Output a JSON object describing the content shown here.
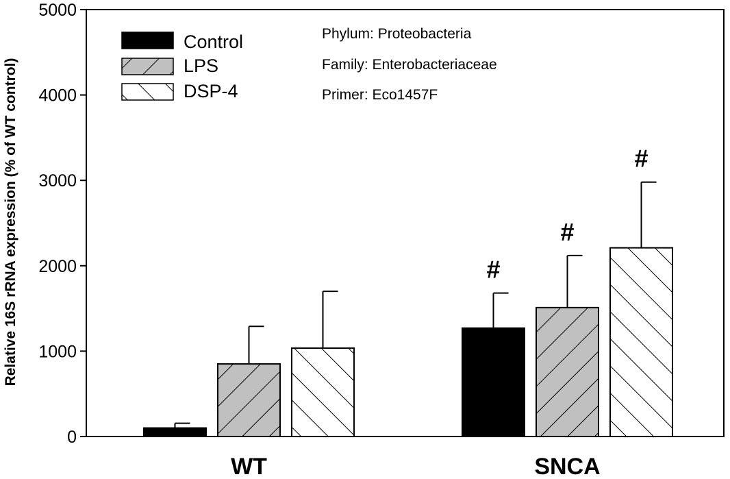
{
  "chart_data": {
    "type": "bar",
    "categories": [
      "WT",
      "SNCA"
    ],
    "series": [
      {
        "name": "Control",
        "values": [
          100,
          1270
        ],
        "errors": [
          55,
          410
        ],
        "fill": "solid-black"
      },
      {
        "name": "LPS",
        "values": [
          850,
          1510
        ],
        "errors": [
          440,
          610
        ],
        "fill": "hatch-forward-gray"
      },
      {
        "name": "DSP-4",
        "values": [
          1035,
          2210
        ],
        "errors": [
          665,
          770
        ],
        "fill": "hatch-backward-white"
      }
    ],
    "significance": [
      {
        "category": "SNCA",
        "series": "Control",
        "label": "#"
      },
      {
        "category": "SNCA",
        "series": "LPS",
        "label": "#"
      },
      {
        "category": "SNCA",
        "series": "DSP-4",
        "label": "#"
      }
    ],
    "title": "",
    "xlabel": "",
    "ylabel": "Relative 16S rRNA expression (% of WT control)",
    "ylim": [
      0,
      5000
    ],
    "yticks": [
      0,
      1000,
      2000,
      3000,
      4000,
      5000
    ],
    "grid": false,
    "legend_position": "top-left",
    "annotations": [
      "Phylum: Proteobacteria",
      "Family: Enterobacteriaceae",
      "Primer: Eco1457F"
    ],
    "colors": {
      "control": "#000000",
      "lps": "#c0c0c0",
      "dsp4": "#ffffff",
      "axis": "#000000"
    }
  }
}
